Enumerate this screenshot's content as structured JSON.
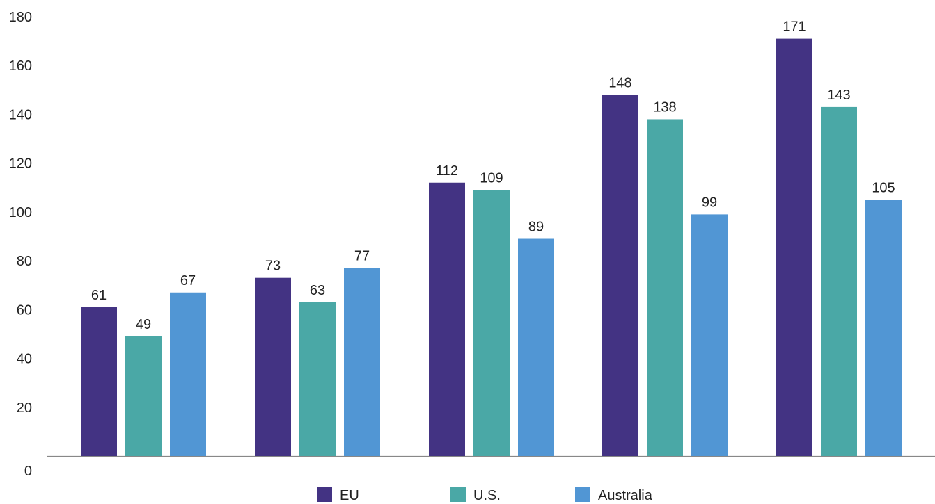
{
  "chart_data": {
    "type": "bar",
    "categories": [
      "",
      "",
      "",
      "",
      ""
    ],
    "series": [
      {
        "name": "EU",
        "values": [
          61,
          73,
          112,
          148,
          171
        ],
        "color": "#433383"
      },
      {
        "name": "U.S.",
        "values": [
          49,
          63,
          109,
          138,
          143
        ],
        "color": "#4aa8a6"
      },
      {
        "name": "Australia",
        "values": [
          67,
          77,
          89,
          99,
          105
        ],
        "color": "#5196d4"
      }
    ],
    "ylim": [
      0,
      180
    ],
    "yticks": [
      0,
      20,
      40,
      60,
      80,
      100,
      120,
      140,
      160,
      180
    ],
    "grid": false,
    "legend_position": "bottom",
    "data_labels": true,
    "title": "",
    "xlabel": "",
    "ylabel": ""
  }
}
